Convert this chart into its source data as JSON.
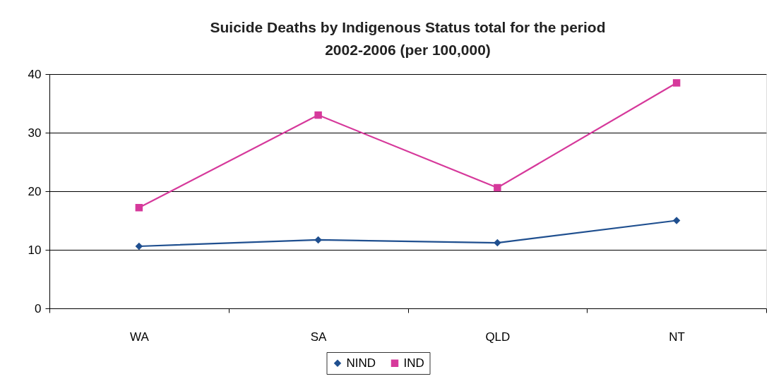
{
  "chart_data": {
    "type": "line",
    "title": "Suicide Deaths by Indigenous Status total for the period 2002-2006 (per 100,000)",
    "categories": [
      "WA",
      "SA",
      "QLD",
      "NT"
    ],
    "series": [
      {
        "name": "NIND",
        "color": "#1f4f8f",
        "marker": "diamond",
        "values": [
          10.6,
          11.7,
          11.2,
          15.0
        ]
      },
      {
        "name": "IND",
        "color": "#d6399b",
        "marker": "square",
        "values": [
          17.2,
          33.0,
          20.6,
          38.5
        ]
      }
    ],
    "ylim": [
      0,
      40
    ],
    "yticks": [
      0,
      10,
      20,
      30,
      40
    ],
    "grid": "y",
    "legend": "bottom"
  }
}
